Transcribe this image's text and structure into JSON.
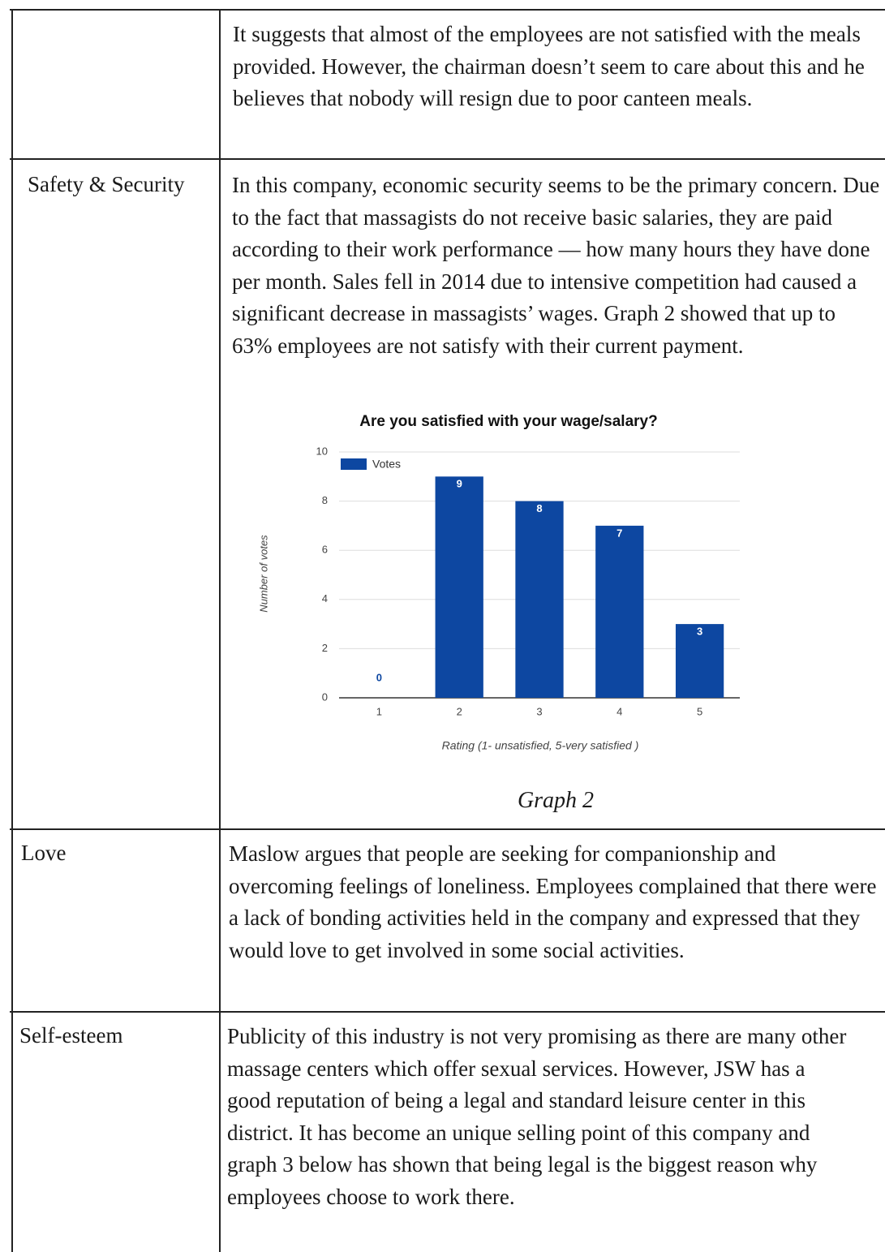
{
  "table": {
    "rows": [
      {
        "text": "It suggests that almost of the employees are not satisfied with the meals provided. However, the chairman doesn’t seem to care about this and he believes that nobody will resign due to poor canteen meals."
      },
      {
        "label": "Safety & Security",
        "text": "In this company, economic security seems to be the primary concern. Due to the fact that massagists do not receive basic salaries, they are paid according to their work performance — how many hours they have done per month. Sales fell in 2014 due to intensive competition had caused a significant decrease in massagists’ wages. Graph 2 showed that up to 63% employees are not satisfy with their current payment."
      },
      {
        "label": "Love",
        "text": "Maslow argues that people are seeking for companionship and overcoming feelings of loneliness. Employees complained that there were a lack of bonding activities held in the company and expressed that they would love to get involved in some social activities."
      },
      {
        "label": "Self-esteem",
        "text": "Publicity of this industry is not very promising as there are many other massage centers which offer sexual services. However, JSW has a good reputation of being a legal and standard leisure center in this district. It has become an unique selling point of this company and graph 3 below has shown that being legal is the biggest reason why employees choose to work there."
      }
    ]
  },
  "chart_data": {
    "type": "bar",
    "title": "Are you satisfied with your wage/salary?",
    "categories": [
      "1",
      "2",
      "3",
      "4",
      "5"
    ],
    "series": [
      {
        "name": "Votes",
        "color": "#0d47a1",
        "values": [
          0,
          9,
          8,
          7,
          3
        ]
      }
    ],
    "x_label": "Rating (1- unsatisfied, 5-very satisfied )",
    "y_label": "Number of votes",
    "ylim": [
      0,
      10
    ],
    "yticks": [
      0,
      2,
      4,
      6,
      8,
      10
    ],
    "grid": true,
    "legend": "top-left"
  },
  "caption": "Graph 2"
}
